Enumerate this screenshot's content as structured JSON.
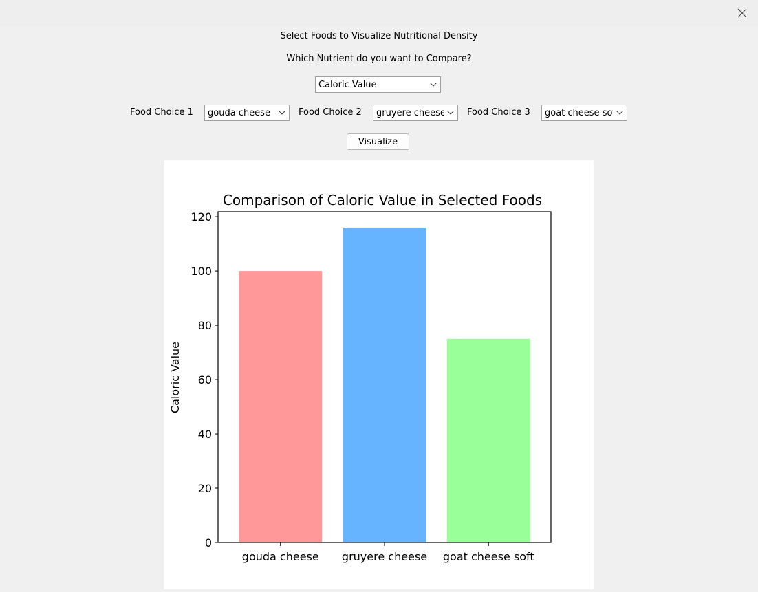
{
  "window": {
    "close_icon": "close-icon"
  },
  "header": {
    "title": "Select Foods to Visualize Nutritional Density",
    "nutrient_prompt": "Which Nutrient do you want to Compare?"
  },
  "nutrient_select": {
    "value": "Caloric Value"
  },
  "food_choices": [
    {
      "label": "Food Choice 1",
      "value": "gouda cheese"
    },
    {
      "label": "Food Choice 2",
      "value": "gruyere cheese"
    },
    {
      "label": "Food Choice 3",
      "value": "goat cheese soft"
    }
  ],
  "visualize_button": {
    "label": "Visualize"
  },
  "chart_data": {
    "type": "bar",
    "title": "Comparison of Caloric Value in Selected Foods",
    "xlabel": "",
    "ylabel": "Caloric Value",
    "categories": [
      "gouda cheese",
      "gruyere cheese",
      "goat cheese soft"
    ],
    "values": [
      100,
      116,
      75
    ],
    "colors": [
      "#ff9999",
      "#66b3ff",
      "#99ff99"
    ],
    "ylim": [
      0,
      121.8
    ],
    "yticks": [
      0,
      20,
      40,
      60,
      80,
      100,
      120
    ],
    "grid": false,
    "legend": "none"
  }
}
